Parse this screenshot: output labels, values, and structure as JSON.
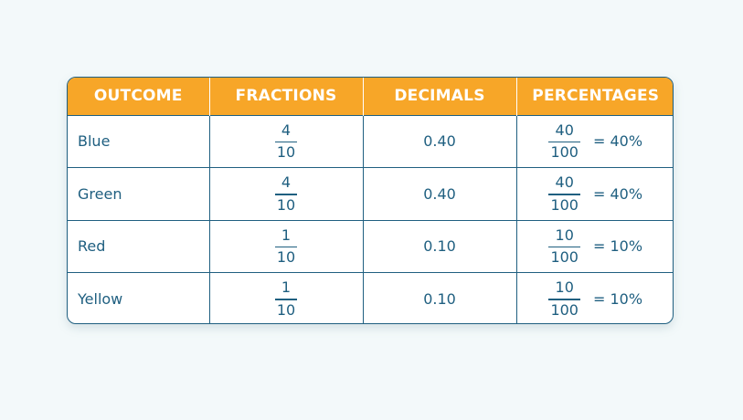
{
  "chart_data": {
    "type": "table",
    "columns": [
      "OUTCOME",
      "FRACTIONS",
      "DECIMALS",
      "PERCENTAGES"
    ],
    "rows": [
      {
        "outcome": "Blue",
        "fraction": {
          "numerator": "4",
          "denominator": "10"
        },
        "decimal": "0.40",
        "percentage": {
          "numerator": "40",
          "denominator": "100",
          "equals": "= 40%"
        }
      },
      {
        "outcome": "Green",
        "fraction": {
          "numerator": "4",
          "denominator": "10"
        },
        "decimal": "0.40",
        "percentage": {
          "numerator": "40",
          "denominator": "100",
          "equals": "= 40%"
        }
      },
      {
        "outcome": "Red",
        "fraction": {
          "numerator": "1",
          "denominator": "10"
        },
        "decimal": "0.10",
        "percentage": {
          "numerator": "10",
          "denominator": "100",
          "equals": "= 10%"
        }
      },
      {
        "outcome": "Yellow",
        "fraction": {
          "numerator": "1",
          "denominator": "10"
        },
        "decimal": "0.10",
        "percentage": {
          "numerator": "10",
          "denominator": "100",
          "equals": "= 10%"
        }
      }
    ]
  },
  "colors": {
    "header_bg": "#f7a628",
    "header_text": "#ffffff",
    "text": "#1f5f80",
    "border": "#1f5f80",
    "page_bg": "#f3f9fa"
  }
}
